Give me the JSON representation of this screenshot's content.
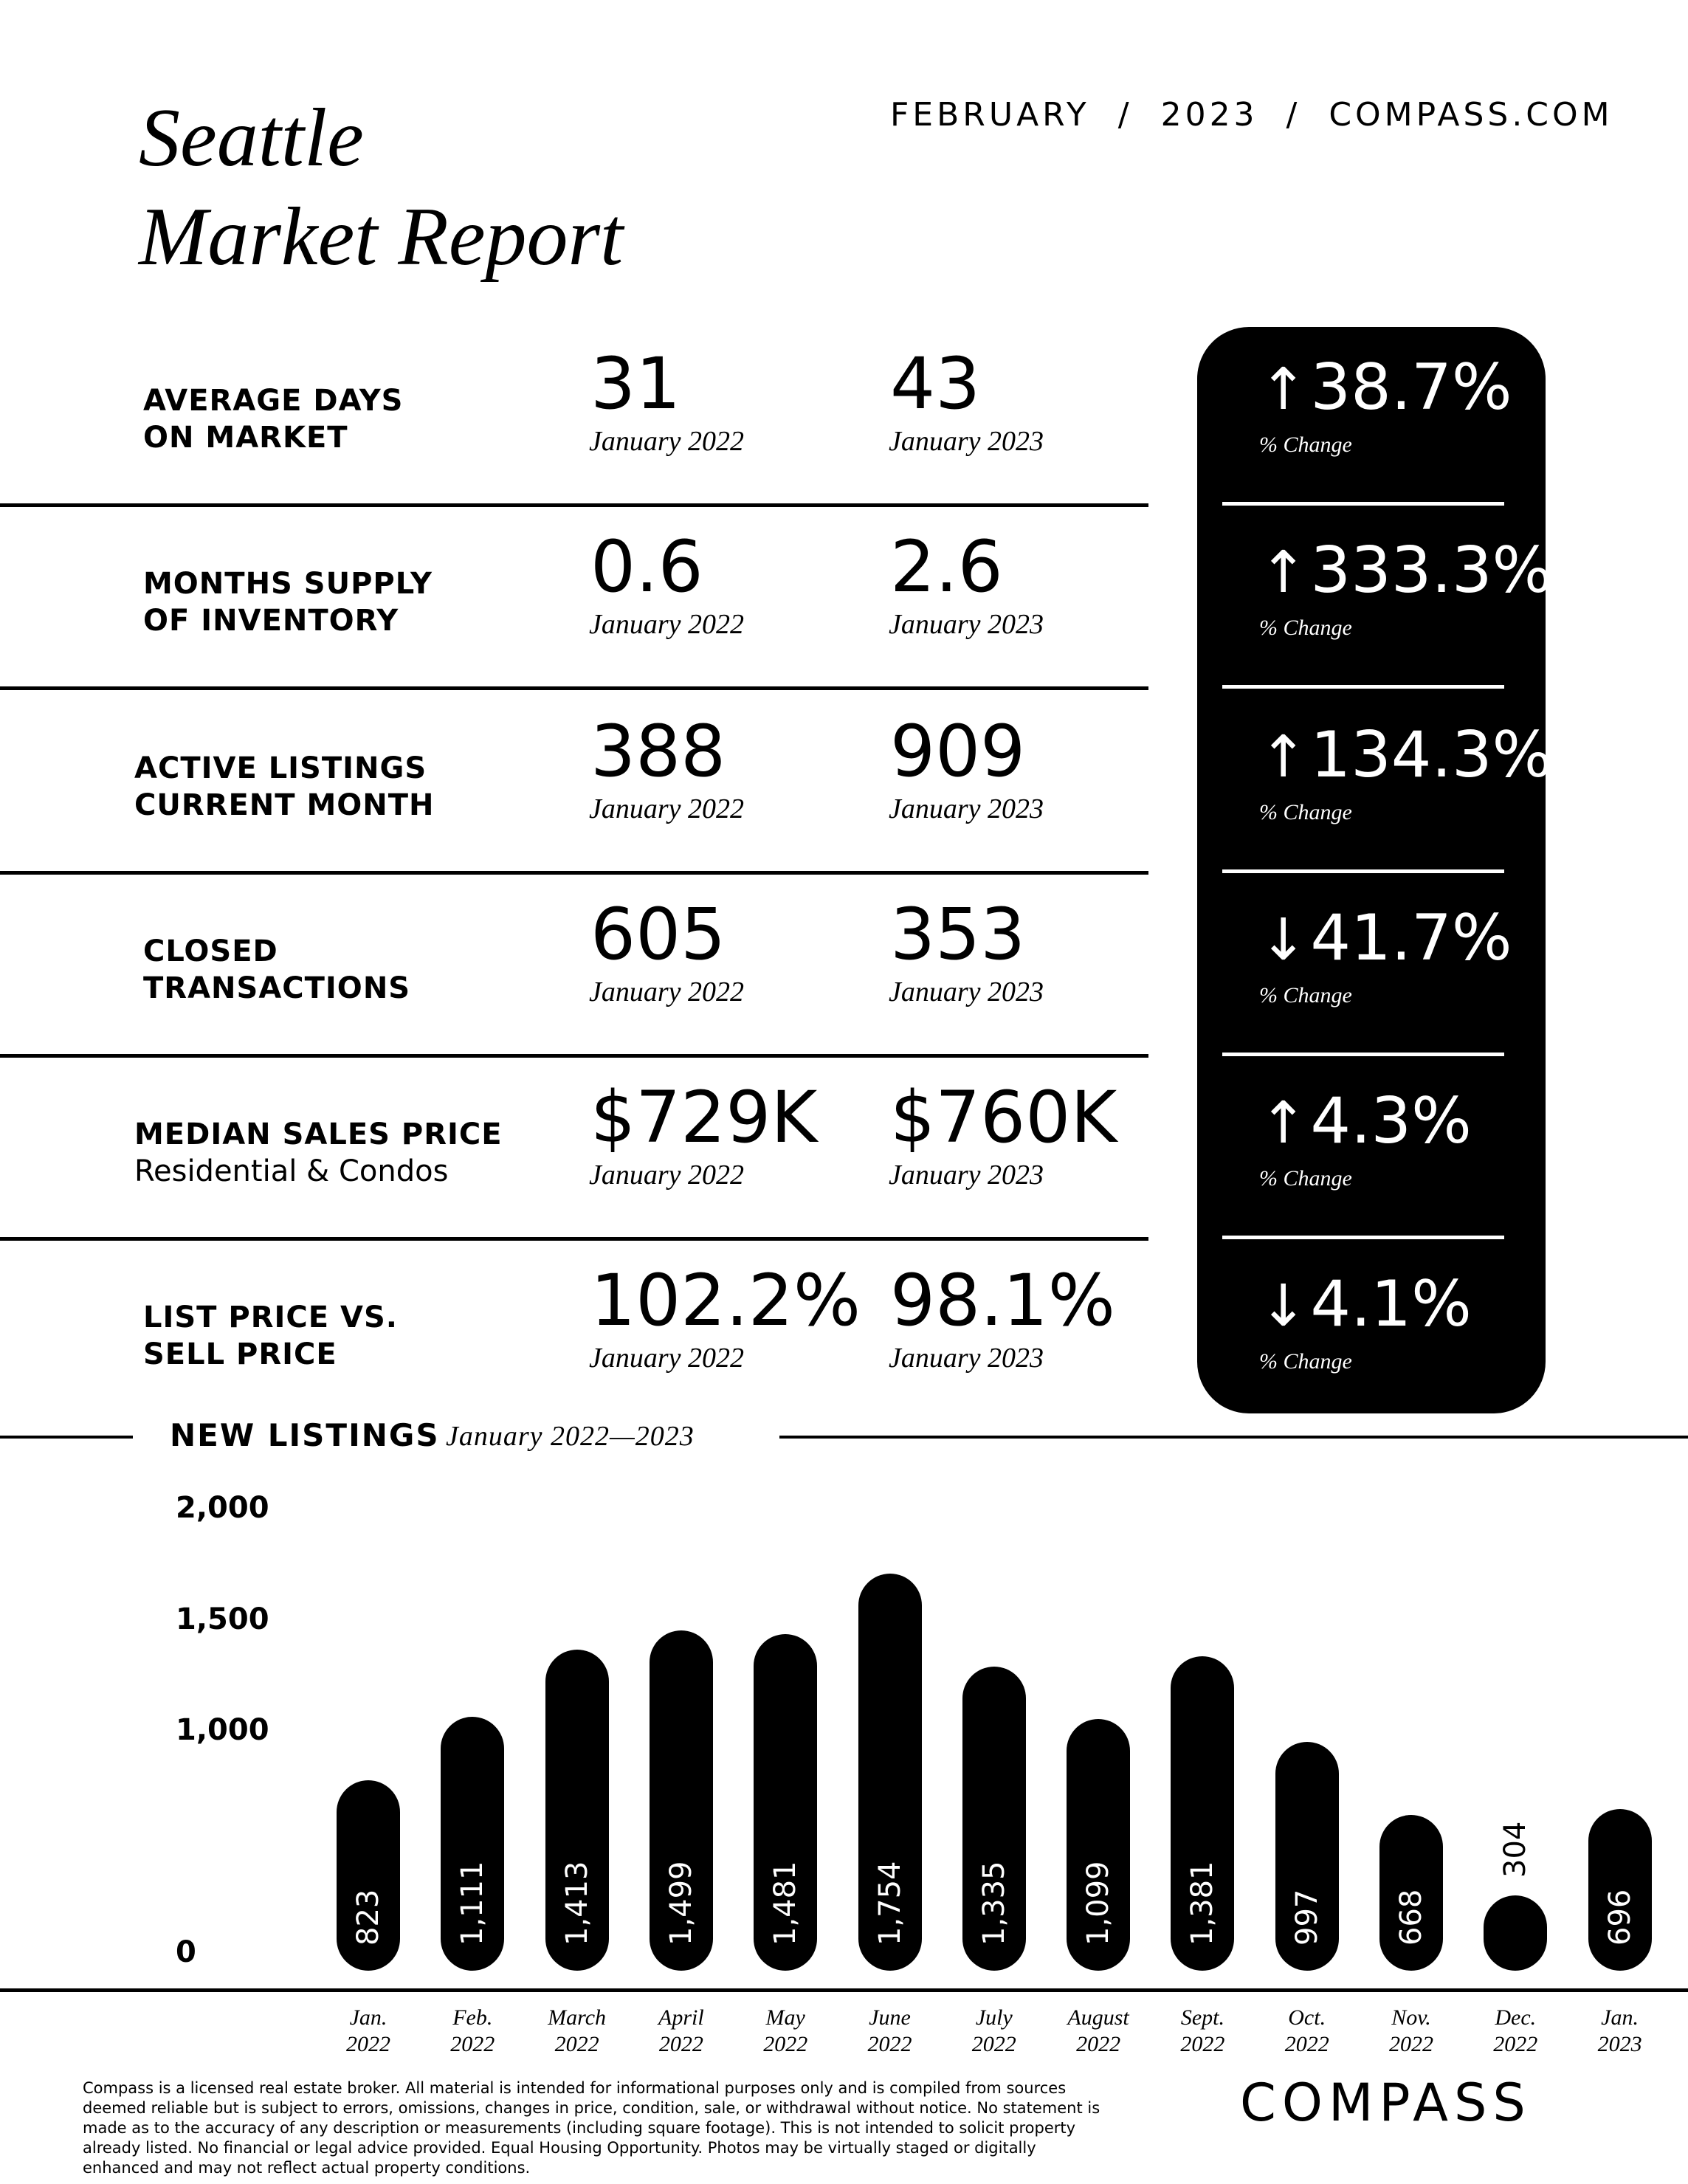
{
  "header": {
    "title_line1": "Seattle",
    "title_line2": "Market Report",
    "meta": "FEBRUARY  /  2023  /  COMPASS.COM"
  },
  "stats": [
    {
      "label1": "AVERAGE DAYS",
      "label2": "ON MARKET",
      "v2022": "31",
      "v2023": "43",
      "cap2022": "January 2022",
      "cap2023": "January 2023",
      "direction": "up",
      "arrow": "↑",
      "change": "38.7%",
      "change_cap": "% Change"
    },
    {
      "label1": "MONTHS SUPPLY",
      "label2": "OF INVENTORY",
      "v2022": "0.6",
      "v2023": "2.6",
      "cap2022": "January 2022",
      "cap2023": "January 2023",
      "direction": "up",
      "arrow": "↑",
      "change": "333.3%",
      "change_cap": "% Change"
    },
    {
      "label1": "ACTIVE LISTINGS",
      "label2": "CURRENT MONTH",
      "v2022": "388",
      "v2023": "909",
      "cap2022": "January 2022",
      "cap2023": "January 2023",
      "direction": "up",
      "arrow": "↑",
      "change": "134.3%",
      "change_cap": "% Change"
    },
    {
      "label1": "CLOSED",
      "label2": "TRANSACTIONS",
      "v2022": "605",
      "v2023": "353",
      "cap2022": "January 2022",
      "cap2023": "January 2023",
      "direction": "down",
      "arrow": "↓",
      "change": "41.7%",
      "change_cap": "% Change"
    },
    {
      "label1": "MEDIAN SALES PRICE",
      "label2": "Residential & Condos",
      "v2022": "$729K",
      "v2023": "$760K",
      "cap2022": "January 2022",
      "cap2023": "January 2023",
      "direction": "up",
      "arrow": "↑",
      "change": "4.3%",
      "change_cap": "% Change"
    },
    {
      "label1": "LIST PRICE VS.",
      "label2": "SELL PRICE",
      "v2022": "102.2%",
      "v2023": "98.1%",
      "cap2022": "January 2022",
      "cap2023": "January 2023",
      "direction": "down",
      "arrow": "↓",
      "change": "4.1%",
      "change_cap": "% Change"
    }
  ],
  "chart_section": {
    "title": "NEW LISTINGS",
    "subtitle": "January 2022—2023"
  },
  "chart_data": {
    "type": "bar",
    "title": "NEW LISTINGS",
    "subtitle": "January 2022—2023",
    "categories": [
      [
        "Jan.",
        "2022"
      ],
      [
        "Feb.",
        "2022"
      ],
      [
        "March",
        "2022"
      ],
      [
        "April",
        "2022"
      ],
      [
        "May",
        "2022"
      ],
      [
        "June",
        "2022"
      ],
      [
        "July",
        "2022"
      ],
      [
        "August",
        "2022"
      ],
      [
        "Sept.",
        "2022"
      ],
      [
        "Oct.",
        "2022"
      ],
      [
        "Nov.",
        "2022"
      ],
      [
        "Dec.",
        "2022"
      ],
      [
        "Jan.",
        "2023"
      ]
    ],
    "values": [
      823,
      1111,
      1413,
      1499,
      1481,
      1754,
      1335,
      1099,
      1381,
      997,
      668,
      304,
      696
    ],
    "value_labels": [
      "823",
      "1,111",
      "1,413",
      "1,499",
      "1,481",
      "1,754",
      "1,335",
      "1,099",
      "1,381",
      "997",
      "668",
      "304",
      "696"
    ],
    "y_ticks": [
      "2,000",
      "1,500",
      "1,000",
      "0"
    ],
    "ylim": [
      0,
      2000
    ],
    "grid": false,
    "bar_style": "rounded-pill",
    "bar_color": "#000000"
  },
  "footer": {
    "disclaimer": "Compass is a licensed real estate broker. All material is intended for informational purposes only and is compiled from sources deemed reliable but is subject to errors, omissions, changes in price, condition, sale, or withdrawal without notice. No statement is made as to the accuracy of any description or measurements (including square footage). This is not intended to solicit property already listed. No financial or legal advice provided. Equal Housing Opportunity. Photos may be virtually staged or digitally enhanced and may not reflect actual property conditions.",
    "logo": "COMPASS"
  }
}
